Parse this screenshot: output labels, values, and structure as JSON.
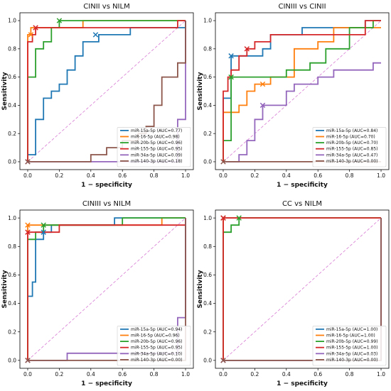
{
  "colors": {
    "miR-15a-5p": "#1f77b4",
    "miR-16-5p": "#ff7f0e",
    "miR-20b-5p": "#2ca02c",
    "miR-155-5p": "#d62728",
    "miR-34a-5p": "#9467bd",
    "miR-140-3p": "#8c564b",
    "diagonal": "#d77ad3"
  },
  "ticks": [
    "0.0",
    "0.2",
    "0.4",
    "0.6",
    "0.8",
    "1.0"
  ],
  "chart_data": [
    {
      "type": "line",
      "title": "CINII vs NILM",
      "xlabel": "1 − specificity",
      "ylabel": "Sensitivity",
      "xlim": [
        0,
        1
      ],
      "ylim": [
        0,
        1
      ],
      "legend_position": "bottom-right",
      "diagonal": true,
      "series": [
        {
          "name": "miR-15a-5p",
          "legend": "miR-15a-5p (AUC=0.77)",
          "x": [
            0,
            0,
            0.05,
            0.05,
            0.1,
            0.1,
            0.15,
            0.15,
            0.2,
            0.2,
            0.25,
            0.25,
            0.3,
            0.3,
            0.35,
            0.35,
            0.45,
            0.45,
            0.65,
            0.65,
            1,
            1
          ],
          "y": [
            0,
            0.05,
            0.05,
            0.3,
            0.3,
            0.45,
            0.45,
            0.5,
            0.5,
            0.55,
            0.55,
            0.65,
            0.65,
            0.75,
            0.75,
            0.85,
            0.85,
            0.9,
            0.9,
            0.95,
            0.95,
            1
          ],
          "marker": [
            0.43,
            0.9
          ]
        },
        {
          "name": "miR-16-5p",
          "legend": "miR-16-5p (AUC=0.98)",
          "x": [
            0,
            0,
            0.02,
            0.02,
            0.35,
            0.35,
            1
          ],
          "y": [
            0,
            0.9,
            0.9,
            0.95,
            0.95,
            1,
            1
          ],
          "marker": [
            0.02,
            0.9
          ]
        },
        {
          "name": "miR-20b-5p",
          "legend": "miR-20b-5p (AUC=0.96)",
          "x": [
            0,
            0,
            0.05,
            0.05,
            0.1,
            0.1,
            0.15,
            0.15,
            0.2,
            0.2,
            1
          ],
          "y": [
            0,
            0.6,
            0.6,
            0.8,
            0.8,
            0.85,
            0.85,
            0.95,
            0.95,
            1,
            1
          ],
          "marker": [
            0.2,
            1
          ]
        },
        {
          "name": "miR-155-5p",
          "legend": "miR-155-5p (AUC=0.95)",
          "x": [
            0,
            0,
            0.03,
            0.03,
            0.05,
            0.05,
            0.95,
            0.95,
            1
          ],
          "y": [
            0,
            0.85,
            0.85,
            0.9,
            0.9,
            0.95,
            0.95,
            1,
            1
          ],
          "marker": [
            0.05,
            0.95
          ]
        },
        {
          "name": "miR-34a-5p",
          "legend": "miR-34a-5p (AUC=0.09)",
          "x": [
            0,
            0.95,
            0.95,
            1,
            1
          ],
          "y": [
            0,
            0,
            0.3,
            0.3,
            1
          ],
          "marker": [
            0,
            0
          ]
        },
        {
          "name": "miR-140-3p",
          "legend": "miR-140-3p (AUC=0.18)",
          "x": [
            0,
            0.4,
            0.4,
            0.5,
            0.5,
            0.6,
            0.6,
            0.7,
            0.7,
            0.75,
            0.75,
            0.8,
            0.8,
            0.85,
            0.85,
            0.95,
            0.95,
            1,
            1
          ],
          "y": [
            0,
            0,
            0.05,
            0.05,
            0.1,
            0.1,
            0.15,
            0.15,
            0.2,
            0.2,
            0.25,
            0.25,
            0.4,
            0.4,
            0.6,
            0.6,
            0.7,
            0.7,
            1
          ],
          "marker": [
            0,
            0
          ]
        }
      ]
    },
    {
      "type": "line",
      "title": "CINIII vs CINII",
      "xlabel": "1 − specificity",
      "ylabel": "Sensitivity",
      "xlim": [
        0,
        1
      ],
      "ylim": [
        0,
        1
      ],
      "legend_position": "bottom-right",
      "diagonal": true,
      "series": [
        {
          "name": "miR-15a-5p",
          "legend": "miR-15a-5p (AUC=0.84)",
          "x": [
            0,
            0,
            0.05,
            0.05,
            0.25,
            0.25,
            0.3,
            0.3,
            0.5,
            0.5,
            0.9,
            0.9,
            1
          ],
          "y": [
            0,
            0.45,
            0.45,
            0.75,
            0.75,
            0.8,
            0.8,
            0.9,
            0.9,
            0.95,
            0.95,
            1,
            1
          ],
          "marker": [
            0.05,
            0.75
          ]
        },
        {
          "name": "miR-16-5p",
          "legend": "miR-16-5p (AUC=0.70)",
          "x": [
            0,
            0,
            0.1,
            0.1,
            0.15,
            0.15,
            0.2,
            0.2,
            0.3,
            0.3,
            0.45,
            0.45,
            0.6,
            0.6,
            0.7,
            0.7,
            1
          ],
          "y": [
            0,
            0.35,
            0.35,
            0.4,
            0.4,
            0.5,
            0.5,
            0.55,
            0.55,
            0.6,
            0.6,
            0.8,
            0.8,
            0.85,
            0.85,
            0.95,
            0.95
          ],
          "marker": [
            0.25,
            0.55
          ]
        },
        {
          "name": "miR-20b-5p",
          "legend": "miR-20b-5p (AUC=0.70)",
          "x": [
            0,
            0,
            0.05,
            0.05,
            0.25,
            0.25,
            0.4,
            0.4,
            0.55,
            0.55,
            0.65,
            0.65,
            0.8,
            0.8,
            0.95,
            0.95,
            1
          ],
          "y": [
            0,
            0.15,
            0.15,
            0.6,
            0.6,
            0.6,
            0.6,
            0.65,
            0.65,
            0.7,
            0.7,
            0.8,
            0.8,
            0.95,
            0.95,
            1,
            1
          ],
          "marker": [
            0.05,
            0.6
          ]
        },
        {
          "name": "miR-155-5p",
          "legend": "miR-155-5p (AUC=0.85)",
          "x": [
            0,
            0,
            0.03,
            0.03,
            0.05,
            0.05,
            0.1,
            0.1,
            0.15,
            0.15,
            0.2,
            0.2,
            0.3,
            0.3,
            0.35,
            0.35,
            0.4,
            0.4,
            0.9,
            0.9,
            1
          ],
          "y": [
            0,
            0.5,
            0.5,
            0.6,
            0.6,
            0.65,
            0.65,
            0.75,
            0.75,
            0.8,
            0.8,
            0.85,
            0.85,
            0.9,
            0.9,
            0.9,
            0.9,
            0.9,
            0.9,
            1,
            1
          ],
          "marker": [
            0.15,
            0.8
          ]
        },
        {
          "name": "miR-34a-5p",
          "legend": "miR-34a-5p (AUC=0.47)",
          "x": [
            0,
            0.1,
            0.1,
            0.15,
            0.15,
            0.2,
            0.2,
            0.25,
            0.25,
            0.4,
            0.4,
            0.45,
            0.45,
            0.6,
            0.6,
            0.7,
            0.7,
            0.95,
            0.95,
            1
          ],
          "y": [
            0,
            0,
            0.05,
            0.05,
            0.15,
            0.15,
            0.3,
            0.3,
            0.4,
            0.4,
            0.5,
            0.5,
            0.55,
            0.55,
            0.6,
            0.6,
            0.65,
            0.65,
            0.7,
            0.7
          ],
          "marker": [
            0.25,
            0.4
          ]
        },
        {
          "name": "miR-140-3p",
          "legend": "miR-140-3p (AUC=0.00)",
          "x": [
            0,
            0.95,
            0.95,
            1
          ],
          "y": [
            0,
            0,
            0,
            0
          ],
          "marker": [
            0,
            0
          ]
        }
      ]
    },
    {
      "type": "line",
      "title": "CINIII vs NILM",
      "xlabel": "1 − specificity",
      "ylabel": "Sensitivity",
      "xlim": [
        0,
        1
      ],
      "ylim": [
        0,
        1
      ],
      "legend_position": "bottom-right",
      "diagonal": true,
      "series": [
        {
          "name": "miR-15a-5p",
          "legend": "miR-15a-5p (AUC=0.94)",
          "x": [
            0,
            0,
            0.03,
            0.03,
            0.05,
            0.05,
            0.1,
            0.1,
            0.15,
            0.15,
            0.55,
            0.55,
            1
          ],
          "y": [
            0,
            0.45,
            0.45,
            0.55,
            0.55,
            0.85,
            0.85,
            0.9,
            0.9,
            0.95,
            0.95,
            1,
            1
          ],
          "marker": [
            0.1,
            0.9
          ]
        },
        {
          "name": "miR-16-5p",
          "legend": "miR-16-5p (AUC=0.96)",
          "x": [
            0,
            0,
            0.85,
            0.85,
            1
          ],
          "y": [
            0,
            0.95,
            0.95,
            1,
            1
          ],
          "marker": [
            0,
            0.95
          ]
        },
        {
          "name": "miR-20b-5p",
          "legend": "miR-20b-5p (AUC=0.96)",
          "x": [
            0,
            0,
            0.05,
            0.05,
            0.1,
            0.1,
            0.6,
            0.6,
            1
          ],
          "y": [
            0,
            0.85,
            0.85,
            0.9,
            0.9,
            0.95,
            0.95,
            1,
            1
          ],
          "marker": [
            0.1,
            0.95
          ]
        },
        {
          "name": "miR-155-5p",
          "legend": "miR-155-5p (AUC=0.95)",
          "x": [
            0,
            0,
            0.1,
            0.1,
            0.2,
            0.2,
            1
          ],
          "y": [
            0,
            0.9,
            0.9,
            0.9,
            0.9,
            0.95,
            0.95
          ],
          "marker": [
            0,
            0.9
          ]
        },
        {
          "name": "miR-34a-5p",
          "legend": "miR-34a-5p (AUC=0.10)",
          "x": [
            0,
            0.25,
            0.25,
            0.75,
            0.75,
            0.95,
            0.95,
            1,
            1
          ],
          "y": [
            0,
            0,
            0.05,
            0.05,
            0.05,
            0.05,
            0.3,
            0.3,
            1
          ],
          "marker": [
            0,
            0
          ]
        },
        {
          "name": "miR-140-3p",
          "legend": "miR-140-3p (AUC=0.00)",
          "x": [
            0,
            1,
            1
          ],
          "y": [
            0,
            0,
            1
          ],
          "marker": [
            0,
            0
          ]
        }
      ]
    },
    {
      "type": "line",
      "title": "CC vs NILM",
      "xlabel": "1 − specificity",
      "ylabel": "Sensitivity",
      "xlim": [
        0,
        1
      ],
      "ylim": [
        0,
        1
      ],
      "legend_position": "bottom-right",
      "diagonal": true,
      "series": [
        {
          "name": "miR-15a-5p",
          "legend": "miR-15a-5p (AUC=1.00)",
          "x": [
            0,
            0,
            1
          ],
          "y": [
            0,
            1,
            1
          ],
          "marker": [
            0,
            1
          ]
        },
        {
          "name": "miR-16-5p",
          "legend": "miR-16-5p (AUC=1.00)",
          "x": [
            0,
            0,
            1
          ],
          "y": [
            0,
            1,
            1
          ],
          "marker": [
            0,
            1
          ]
        },
        {
          "name": "miR-20b-5p",
          "legend": "miR-20b-5p (AUC=0.99)",
          "x": [
            0,
            0,
            0.05,
            0.05,
            0.1,
            0.1,
            1
          ],
          "y": [
            0,
            0.9,
            0.9,
            0.95,
            0.95,
            1,
            1
          ],
          "marker": [
            0.1,
            1
          ]
        },
        {
          "name": "miR-155-5p",
          "legend": "miR-155-5p (AUC=1.00)",
          "x": [
            0,
            0,
            1
          ],
          "y": [
            0,
            1,
            1
          ],
          "marker": [
            0,
            1
          ]
        },
        {
          "name": "miR-34a-5p",
          "legend": "miR-34a-5p (AUC=0.03)",
          "x": [
            0,
            1,
            1
          ],
          "y": [
            0,
            0,
            1
          ],
          "marker": [
            0,
            0
          ]
        },
        {
          "name": "miR-140-3p",
          "legend": "miR-140-3p (AUC=0.00)",
          "x": [
            0,
            1,
            1
          ],
          "y": [
            0,
            0,
            1
          ],
          "marker": [
            0,
            0
          ]
        }
      ]
    }
  ]
}
